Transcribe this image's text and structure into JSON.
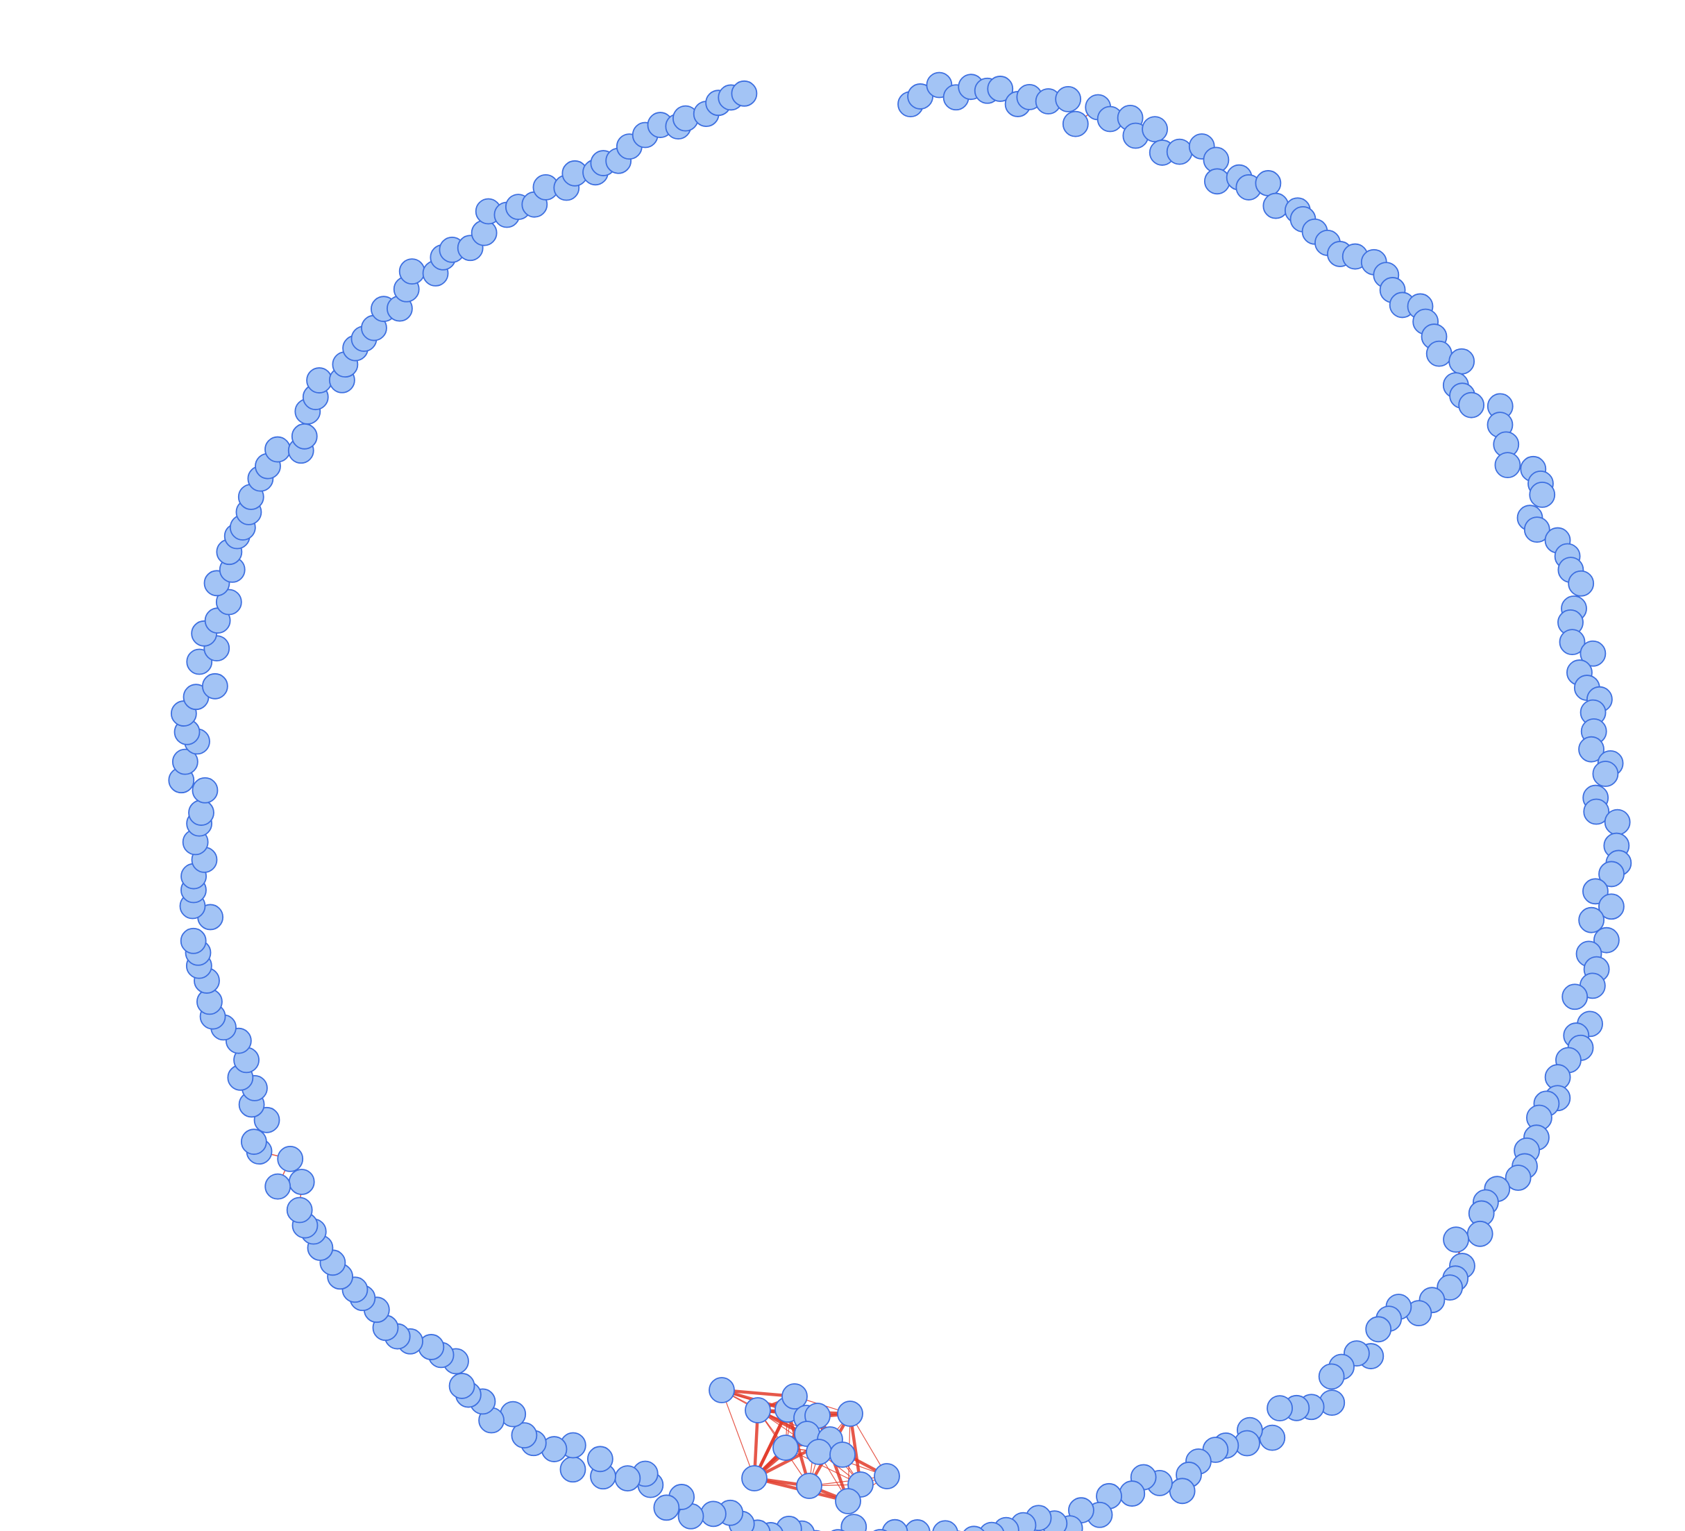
{
  "graph": {
    "type": "network",
    "layout": "circular",
    "node_fill": "#a3c4f5",
    "node_stroke": "#3d6fe0",
    "edge_color": "#e23b2a",
    "node_count": 290,
    "dense_cluster_position": "bottom"
  }
}
